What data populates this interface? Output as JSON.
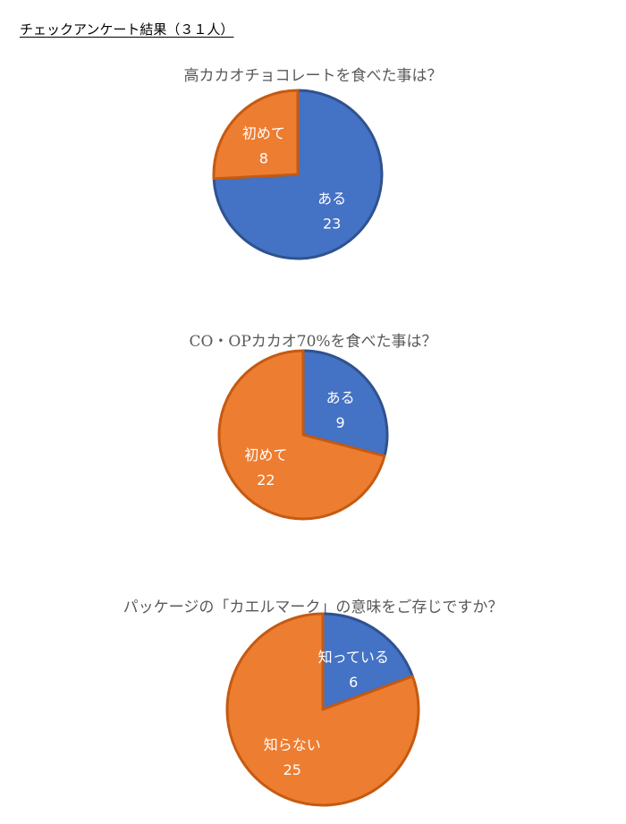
{
  "heading": "チェックアンケート結果（３１人）",
  "colors": {
    "blue": "#4472c4",
    "orange": "#ed7d31",
    "title": "#595959"
  },
  "chart_data": [
    {
      "type": "pie",
      "title": "高カカオチョコレートを食べた事は？",
      "slices": [
        {
          "label": "ある",
          "value": 23,
          "color": "#4472c4"
        },
        {
          "label": "初めて",
          "value": 8,
          "color": "#ed7d31"
        }
      ]
    },
    {
      "type": "pie",
      "title": "CO・OPカカオ70%を食べた事は？",
      "slices": [
        {
          "label": "ある",
          "value": 9,
          "color": "#4472c4"
        },
        {
          "label": "初めて",
          "value": 22,
          "color": "#ed7d31"
        }
      ]
    },
    {
      "type": "pie",
      "title": "パッケージの「カエルマーク」の意味をご存じですか？",
      "slices": [
        {
          "label": "知っている",
          "value": 6,
          "color": "#4472c4"
        },
        {
          "label": "知らない",
          "value": 25,
          "color": "#ed7d31"
        }
      ]
    }
  ]
}
